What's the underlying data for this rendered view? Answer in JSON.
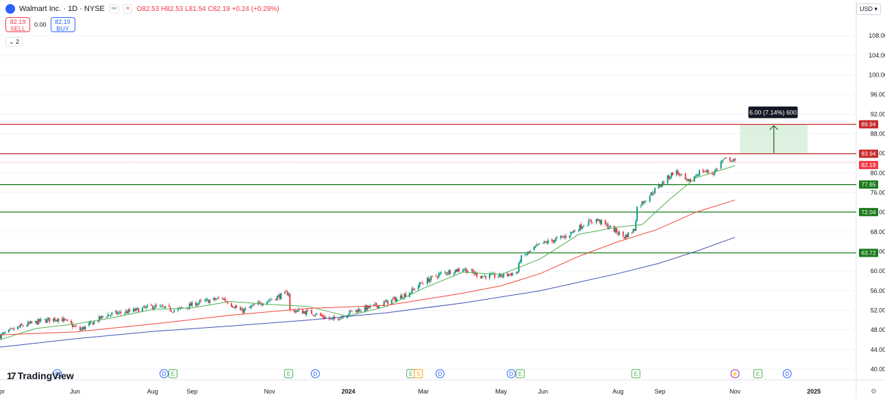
{
  "header": {
    "symbol_title": "Walmart Inc. · 1D · NYSE",
    "open": "O82.53",
    "high": "H82.53",
    "low": "L81.54",
    "close": "C82.19",
    "change": "+0.24 (+0.29%)"
  },
  "trade": {
    "sell_price": "82.19",
    "sell_label": "SELL",
    "spread": "0.00",
    "buy_price": "82.19",
    "buy_label": "BUY"
  },
  "layers_count": "2",
  "currency": "USD",
  "brand": "TradingView",
  "settings_icon": "gear-icon",
  "colors": {
    "up": "#089981",
    "down": "#f23645",
    "sma_short": "#4caf50",
    "sma_mid": "#f44336",
    "sma_long": "#3f51b5",
    "resistance": "#c62828",
    "support": "#1b7a1b",
    "projection_fill": "#c8e6c9"
  },
  "chart_data": {
    "type": "candlestick",
    "xlabel": "",
    "ylabel": "",
    "ylim": [
      40,
      112
    ],
    "y_ticks": [
      40,
      44,
      48,
      52,
      56,
      60,
      64,
      68,
      72,
      76,
      80,
      84,
      88,
      92,
      96,
      100,
      104,
      108
    ],
    "x_ticks": [
      {
        "label": "Apr",
        "date": "2023-04-03"
      },
      {
        "label": "Jun",
        "date": "2023-06-01"
      },
      {
        "label": "Aug",
        "date": "2023-08-01"
      },
      {
        "label": "Sep",
        "date": "2023-09-01"
      },
      {
        "label": "Nov",
        "date": "2023-11-01"
      },
      {
        "label": "2024",
        "date": "2024-01-02"
      },
      {
        "label": "Mar",
        "date": "2024-03-01"
      },
      {
        "label": "May",
        "date": "2024-05-01"
      },
      {
        "label": "Jun",
        "date": "2024-06-03"
      },
      {
        "label": "Aug",
        "date": "2024-08-01"
      },
      {
        "label": "Sep",
        "date": "2024-09-03"
      },
      {
        "label": "Nov",
        "date": "2024-11-01"
      },
      {
        "label": "2025",
        "date": "2025-01-02"
      }
    ],
    "x_range": [
      "2023-04-03",
      "2025-01-31"
    ],
    "price_path": [
      [
        "2023-04-03",
        46.8
      ],
      [
        "2023-04-20",
        48.8
      ],
      [
        "2023-05-05",
        49.8
      ],
      [
        "2023-05-20",
        50.4
      ],
      [
        "2023-06-05",
        48.0
      ],
      [
        "2023-06-25",
        51.0
      ],
      [
        "2023-07-15",
        51.8
      ],
      [
        "2023-08-01",
        52.8
      ],
      [
        "2023-08-20",
        52.0
      ],
      [
        "2023-09-05",
        53.5
      ],
      [
        "2023-09-25",
        54.5
      ],
      [
        "2023-10-10",
        51.8
      ],
      [
        "2023-10-25",
        53.5
      ],
      [
        "2023-11-10",
        55.0
      ],
      [
        "2023-11-16",
        55.6
      ],
      [
        "2023-11-17",
        52.0
      ],
      [
        "2023-12-05",
        51.5
      ],
      [
        "2023-12-20",
        50.0
      ],
      [
        "2024-01-05",
        51.8
      ],
      [
        "2024-01-25",
        53.0
      ],
      [
        "2024-02-10",
        54.5
      ],
      [
        "2024-02-20",
        55.8
      ],
      [
        "2024-02-28",
        57.5
      ],
      [
        "2024-03-15",
        59.5
      ],
      [
        "2024-04-01",
        60.5
      ],
      [
        "2024-04-15",
        59.0
      ],
      [
        "2024-05-01",
        59.0
      ],
      [
        "2024-05-14",
        59.8
      ],
      [
        "2024-05-16",
        62.5
      ],
      [
        "2024-06-01",
        65.5
      ],
      [
        "2024-06-20",
        67.0
      ],
      [
        "2024-07-05",
        69.5
      ],
      [
        "2024-07-15",
        70.5
      ],
      [
        "2024-07-25",
        69.0
      ],
      [
        "2024-08-06",
        67.0
      ],
      [
        "2024-08-14",
        68.5
      ],
      [
        "2024-08-16",
        73.0
      ],
      [
        "2024-08-30",
        76.5
      ],
      [
        "2024-09-15",
        80.5
      ],
      [
        "2024-09-25",
        78.0
      ],
      [
        "2024-10-05",
        80.5
      ],
      [
        "2024-10-15",
        80.0
      ],
      [
        "2024-10-22",
        82.5
      ],
      [
        "2024-10-28",
        82.9
      ],
      [
        "2024-11-01",
        82.19
      ]
    ],
    "series": [
      {
        "name": "",
        "type": "sma_short",
        "points": [
          [
            "2023-04-03",
            46.0
          ],
          [
            "2023-05-01",
            48.3
          ],
          [
            "2023-06-01",
            49.2
          ],
          [
            "2023-07-01",
            50.5
          ],
          [
            "2023-08-01",
            52.2
          ],
          [
            "2023-09-01",
            52.5
          ],
          [
            "2023-10-01",
            53.8
          ],
          [
            "2023-11-01",
            53.2
          ],
          [
            "2023-12-01",
            52.8
          ],
          [
            "2024-01-01",
            50.8
          ],
          [
            "2024-02-01",
            52.8
          ],
          [
            "2024-03-01",
            56.5
          ],
          [
            "2024-04-01",
            59.8
          ],
          [
            "2024-05-01",
            59.3
          ],
          [
            "2024-06-01",
            62.5
          ],
          [
            "2024-07-01",
            67.5
          ],
          [
            "2024-08-01",
            69.0
          ],
          [
            "2024-08-20",
            69.5
          ],
          [
            "2024-09-10",
            74.5
          ],
          [
            "2024-10-01",
            79.0
          ],
          [
            "2024-11-01",
            81.5
          ]
        ]
      },
      {
        "name": "",
        "type": "sma_mid",
        "points": [
          [
            "2023-04-03",
            47.0
          ],
          [
            "2023-06-01",
            47.6
          ],
          [
            "2023-08-01",
            49.2
          ],
          [
            "2023-10-01",
            51.0
          ],
          [
            "2023-12-01",
            52.4
          ],
          [
            "2024-02-01",
            53.0
          ],
          [
            "2024-04-01",
            55.5
          ],
          [
            "2024-05-01",
            57.0
          ],
          [
            "2024-06-01",
            59.5
          ],
          [
            "2024-07-01",
            63.0
          ],
          [
            "2024-08-01",
            66.0
          ],
          [
            "2024-09-01",
            68.5
          ],
          [
            "2024-10-01",
            72.0
          ],
          [
            "2024-11-01",
            74.5
          ]
        ]
      },
      {
        "name": "",
        "type": "sma_long",
        "points": [
          [
            "2023-04-03",
            44.5
          ],
          [
            "2023-06-01",
            46.2
          ],
          [
            "2023-08-01",
            47.7
          ],
          [
            "2023-10-01",
            48.8
          ],
          [
            "2023-12-01",
            50.0
          ],
          [
            "2024-02-01",
            51.5
          ],
          [
            "2024-04-01",
            53.5
          ],
          [
            "2024-06-01",
            56.0
          ],
          [
            "2024-08-01",
            59.5
          ],
          [
            "2024-09-01",
            61.5
          ],
          [
            "2024-10-01",
            64.0
          ],
          [
            "2024-11-01",
            66.9
          ]
        ]
      }
    ],
    "horizontal_levels": [
      {
        "value": 89.94,
        "label": "89.94",
        "kind": "resistance"
      },
      {
        "value": 83.94,
        "label": "83.94",
        "kind": "resistance"
      },
      {
        "value": 77.65,
        "label": "77.65",
        "kind": "support"
      },
      {
        "value": 72.04,
        "label": "72.04",
        "kind": "support"
      },
      {
        "value": 63.72,
        "label": "63.72",
        "kind": "support"
      }
    ],
    "last_price": {
      "value": 82.19,
      "label": "82.19"
    },
    "projection": {
      "x_start": "2024-11-05",
      "x_end": "2024-12-28",
      "y_from": 83.94,
      "y_to": 89.94,
      "label": "6.00 (7.14%) 600"
    },
    "events": [
      {
        "date": "2023-05-18",
        "marker": "D"
      },
      {
        "date": "2023-08-10",
        "marker": "D"
      },
      {
        "date": "2023-08-17",
        "marker": "E"
      },
      {
        "date": "2023-11-16",
        "marker": "E"
      },
      {
        "date": "2023-12-07",
        "marker": "D"
      },
      {
        "date": "2024-02-20",
        "marker": "E"
      },
      {
        "date": "2024-02-26",
        "marker": "S"
      },
      {
        "date": "2024-03-14",
        "marker": "D"
      },
      {
        "date": "2024-05-09",
        "marker": "D"
      },
      {
        "date": "2024-05-16",
        "marker": "E"
      },
      {
        "date": "2024-08-15",
        "marker": "E"
      },
      {
        "date": "2024-11-01",
        "marker": "⚡"
      },
      {
        "date": "2024-11-19",
        "marker": "E"
      },
      {
        "date": "2024-12-12",
        "marker": "D"
      }
    ]
  }
}
